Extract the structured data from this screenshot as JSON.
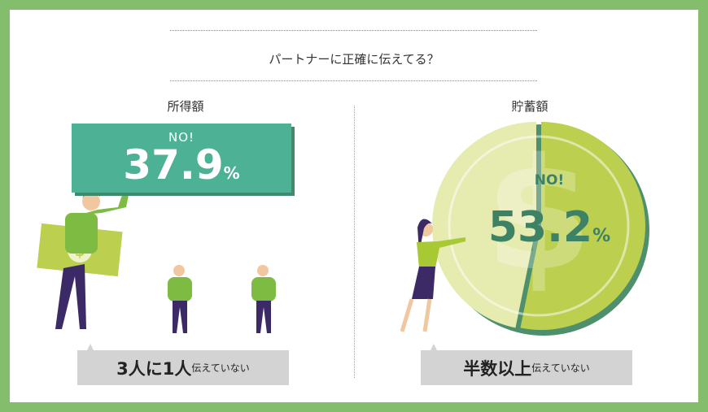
{
  "title": "パートナーに正確に伝えてる？",
  "left": {
    "heading": "所得額",
    "no_label": "NO!",
    "value": "37.9",
    "unit": "%",
    "caption_big": "3人に1人",
    "caption_small": "伝えていない"
  },
  "right": {
    "heading": "貯蓄額",
    "no_label": "NO!",
    "value": "53.2",
    "unit": "%",
    "caption_big": "半数以上",
    "caption_small": "伝えていない"
  },
  "chart_data": {
    "type": "pie",
    "values": [
      53.2,
      46.8
    ],
    "colors": [
      "#bccf4e",
      "#e6ebb0"
    ]
  },
  "colors": {
    "frame": "#84bd6c",
    "banner": "#4cb195",
    "pie_accent": "#bccf4e"
  }
}
